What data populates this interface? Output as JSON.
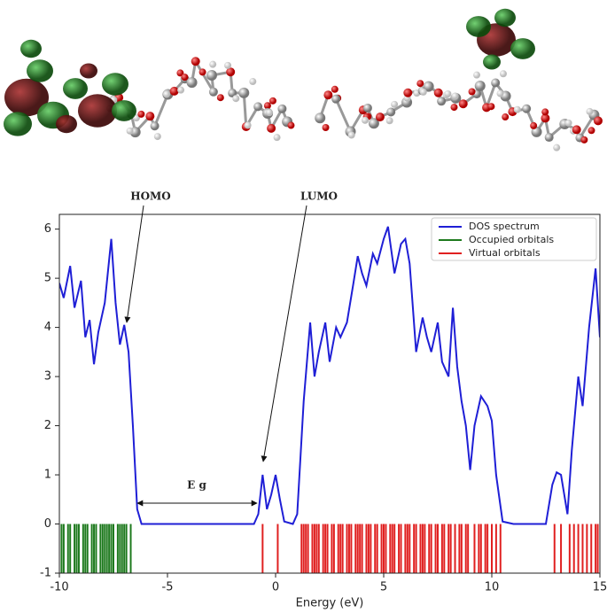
{
  "chart_data": {
    "type": "line",
    "x_label": "Energy (eV)",
    "annotations": [
      "HOMO",
      "LUMO",
      "E g"
    ],
    "xlim": [
      -10,
      15
    ],
    "xticks": [
      -10,
      -5,
      0,
      5,
      10,
      15
    ],
    "ylim": [
      -1,
      6.3
    ],
    "yticks": [
      -1,
      0,
      1,
      2,
      3,
      4,
      5,
      6
    ],
    "legend": "upper right",
    "x": [
      -10,
      -9.8,
      -9.5,
      -9.3,
      -9.0,
      -8.8,
      -8.6,
      -8.4,
      -8.2,
      -7.9,
      -7.6,
      -7.4,
      -7.2,
      -7.0,
      -6.8,
      -6.6,
      -6.4,
      -6.2,
      -1,
      -0.8,
      -0.6,
      -0.4,
      -0.2,
      0,
      0.2,
      0.4,
      0.8,
      1.0,
      1.3,
      1.6,
      1.8,
      2.0,
      2.3,
      2.5,
      2.8,
      3.0,
      3.3,
      3.6,
      3.8,
      4.0,
      4.2,
      4.5,
      4.7,
      5.0,
      5.2,
      5.5,
      5.8,
      6.0,
      6.2,
      6.5,
      6.8,
      7.0,
      7.2,
      7.5,
      7.7,
      8.0,
      8.2,
      8.4,
      8.6,
      8.8,
      9.0,
      9.2,
      9.5,
      9.8,
      10.0,
      10.2,
      10.5,
      11,
      12.5,
      12.8,
      13.0,
      13.2,
      13.5,
      13.7,
      14.0,
      14.2,
      14.5,
      14.8,
      15.0
    ],
    "series": [
      {
        "name": "DOS spectrum",
        "color": "#1f1fd6",
        "kind": "line",
        "values": [
          4.9,
          4.6,
          5.25,
          4.4,
          4.95,
          3.8,
          4.15,
          3.25,
          3.9,
          4.5,
          5.8,
          4.5,
          3.65,
          4.05,
          3.5,
          2.0,
          0.3,
          0,
          0,
          0.2,
          1.0,
          0.3,
          0.6,
          1.0,
          0.5,
          0.05,
          0,
          0.2,
          2.5,
          4.1,
          3.0,
          3.5,
          4.1,
          3.3,
          4.0,
          3.8,
          4.1,
          4.9,
          5.45,
          5.1,
          4.85,
          5.5,
          5.3,
          5.8,
          6.05,
          5.1,
          5.7,
          5.8,
          5.3,
          3.5,
          4.2,
          3.8,
          3.5,
          4.1,
          3.3,
          3.0,
          4.4,
          3.2,
          2.5,
          2.0,
          1.1,
          2.0,
          2.6,
          2.4,
          2.1,
          1.0,
          0.05,
          0,
          0,
          0.8,
          1.05,
          1.0,
          0.2,
          1.5,
          3.0,
          2.4,
          4.0,
          5.2,
          3.8
        ]
      },
      {
        "name": "Occupied orbitals",
        "color": "#1e7a1e",
        "kind": "rug",
        "x": [
          -9.9,
          -9.8,
          -9.6,
          -9.5,
          -9.3,
          -9.2,
          -9.1,
          -8.9,
          -8.8,
          -8.7,
          -8.5,
          -8.4,
          -8.3,
          -8.1,
          -8.0,
          -7.9,
          -7.8,
          -7.7,
          -7.6,
          -7.5,
          -7.3,
          -7.2,
          -7.1,
          -7.0,
          -6.9,
          -6.7
        ]
      },
      {
        "name": "Virtual orbitals",
        "color": "#e02020",
        "kind": "rug",
        "x": [
          -0.6,
          0.1,
          1.2,
          1.3,
          1.4,
          1.5,
          1.7,
          1.8,
          1.9,
          2.0,
          2.2,
          2.3,
          2.4,
          2.6,
          2.7,
          2.9,
          3.0,
          3.1,
          3.3,
          3.4,
          3.5,
          3.7,
          3.8,
          3.9,
          4.0,
          4.2,
          4.3,
          4.4,
          4.6,
          4.7,
          4.9,
          5.0,
          5.1,
          5.3,
          5.4,
          5.5,
          5.7,
          5.8,
          6.0,
          6.1,
          6.2,
          6.4,
          6.5,
          6.7,
          6.8,
          6.9,
          7.1,
          7.2,
          7.4,
          7.5,
          7.7,
          7.8,
          8.0,
          8.1,
          8.3,
          8.5,
          8.6,
          8.8,
          8.9,
          9.2,
          9.4,
          9.5,
          9.7,
          9.8,
          10.0,
          10.2,
          10.4,
          12.9,
          13.2,
          13.6,
          13.8,
          14.0,
          14.2,
          14.4,
          14.6,
          14.8,
          14.9
        ]
      }
    ]
  }
}
